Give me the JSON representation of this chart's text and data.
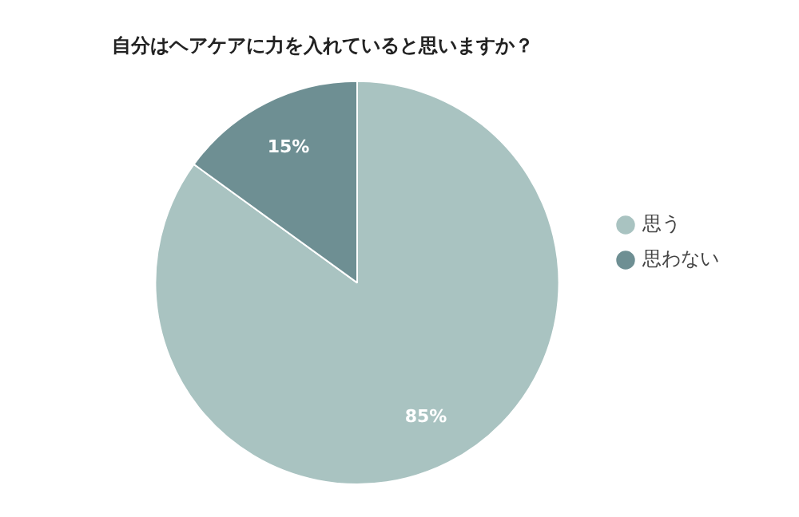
{
  "chart_data": {
    "type": "pie",
    "title": "自分はヘアケアに力を入れていると思いますか？",
    "categories": [
      "思う",
      "思わない"
    ],
    "values": [
      85,
      15
    ],
    "colors": [
      "#a9c3c1",
      "#6e8f93"
    ],
    "value_labels": [
      "85%",
      "15%"
    ],
    "legend": "right"
  }
}
